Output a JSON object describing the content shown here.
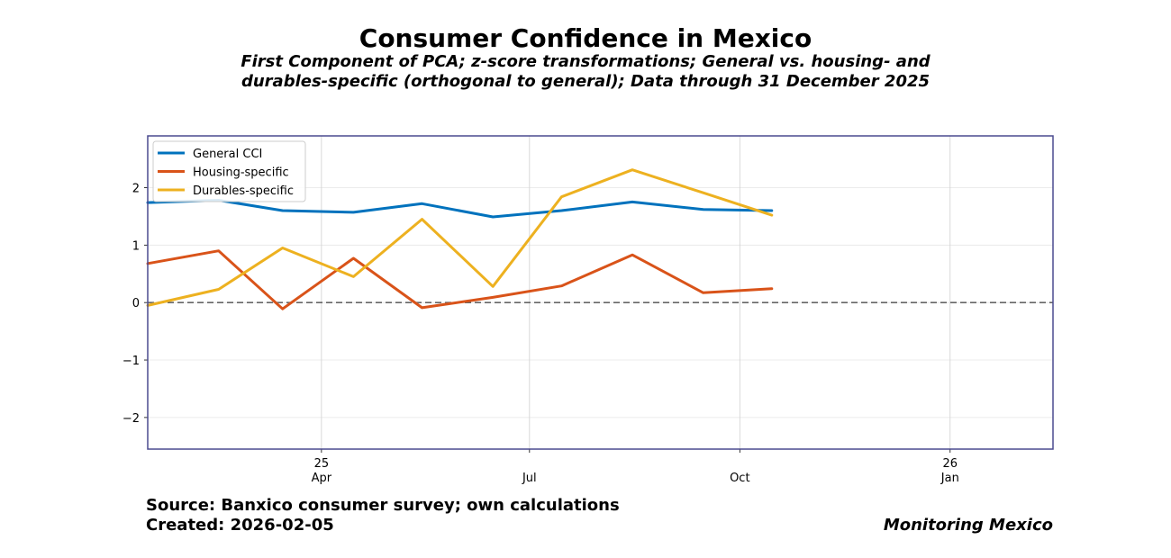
{
  "header": {
    "title": "Consumer Confidence in Mexico",
    "subtitle_line1": "First Component of PCA; z-score transformations; General vs. housing- and",
    "subtitle_line2": "durables-specific (orthogonal to general); Data through 31 December 2025"
  },
  "footer": {
    "source": "Source: Banxico consumer survey; own calculations",
    "created": "Created: 2026-02-05",
    "brand": "Monitoring Mexico"
  },
  "colors": {
    "general": "#0072bd",
    "housing": "#d95319",
    "durables": "#edb120",
    "frame": "#4b4b8f",
    "zero_line": "#666666"
  },
  "chart_data": {
    "type": "line",
    "x": [
      "2025-01",
      "2025-02",
      "2025-03",
      "2025-04",
      "2025-05",
      "2025-06",
      "2025-07",
      "2025-08",
      "2025-09",
      "2025-10",
      "2025-11"
    ],
    "xlim": [
      "2025-01-15",
      "2026-02-15"
    ],
    "ylim": [
      -2.55,
      2.9
    ],
    "yticks": [
      -2,
      -1,
      0,
      1,
      2
    ],
    "ytick_labels": [
      "−2",
      "−1",
      "0",
      "1",
      "2"
    ],
    "xticks": [
      {
        "date": "2025-04-01",
        "label1": "25",
        "label2": "Apr"
      },
      {
        "date": "2025-07-01",
        "label1": "",
        "label2": "Jul"
      },
      {
        "date": "2025-10-01",
        "label1": "",
        "label2": "Oct"
      },
      {
        "date": "2026-01-01",
        "label1": "26",
        "label2": "Jan"
      }
    ],
    "grid": true,
    "zero_line": true,
    "legend_position": "top-left",
    "series": [
      {
        "name": "General CCI",
        "key": "general",
        "values": [
          1.74,
          1.78,
          1.6,
          1.57,
          1.72,
          1.49,
          1.6,
          1.75,
          1.62,
          1.6,
          null
        ]
      },
      {
        "name": "Housing-specific",
        "key": "housing",
        "values": [
          0.68,
          0.9,
          -0.11,
          0.77,
          -0.09,
          0.09,
          0.29,
          0.83,
          0.17,
          0.24,
          null
        ]
      },
      {
        "name": "Durables-specific",
        "key": "durables",
        "values": [
          -0.05,
          0.23,
          0.95,
          0.45,
          1.45,
          0.28,
          1.84,
          2.31,
          1.91,
          1.52,
          null
        ]
      }
    ],
    "x_dates": [
      "2025-01-15",
      "2025-02-15",
      "2025-03-15",
      "2025-04-15",
      "2025-05-15",
      "2025-06-15",
      "2025-07-15",
      "2025-08-15",
      "2025-09-15",
      "2025-10-15",
      "2025-11-15"
    ]
  }
}
